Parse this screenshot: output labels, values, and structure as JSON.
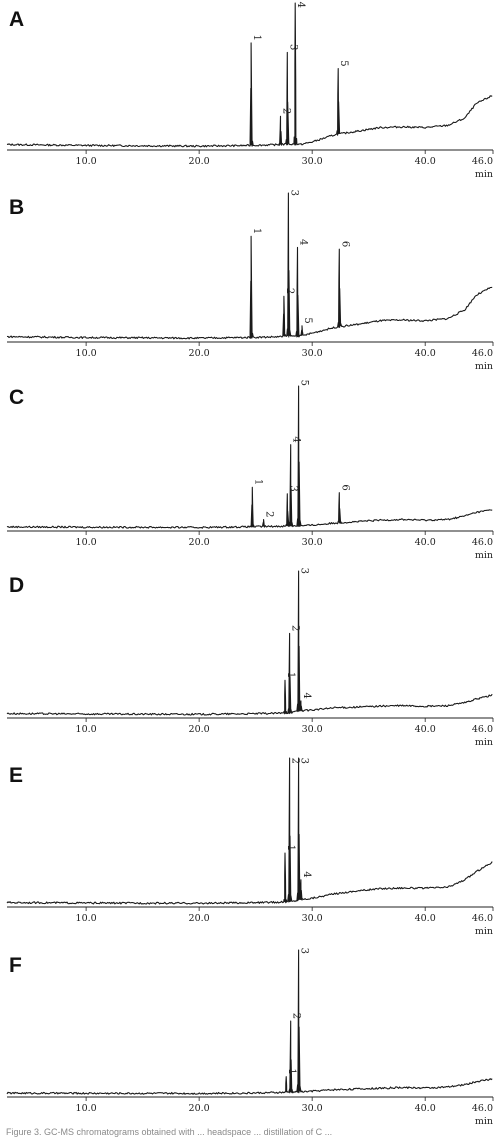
{
  "chart_data": [
    {
      "type": "line",
      "panel": "A",
      "title": "",
      "xlabel": "min",
      "ylabel": "",
      "xlim": [
        3.0,
        46.0
      ],
      "xticks": [
        "10.0",
        "20.0",
        "30.0",
        "40.0",
        "46.0"
      ],
      "baseline": [
        [
          3.0,
          0.017
        ],
        [
          10.0,
          0.011
        ],
        [
          20.0,
          0.006
        ],
        [
          24.0,
          0.01
        ],
        [
          27.0,
          0.016
        ],
        [
          28.0,
          0.02
        ],
        [
          29.0,
          0.018
        ],
        [
          30.0,
          0.035
        ],
        [
          32.0,
          0.085
        ],
        [
          34.0,
          0.11
        ],
        [
          36.0,
          0.135
        ],
        [
          38.0,
          0.14
        ],
        [
          40.0,
          0.135
        ],
        [
          42.0,
          0.15
        ],
        [
          43.5,
          0.2
        ],
        [
          44.5,
          0.3
        ],
        [
          46.0,
          0.36
        ]
      ],
      "peaks": [
        {
          "label": "1",
          "rt": 24.6,
          "height": 0.72
        },
        {
          "label": "2",
          "rt": 27.2,
          "height": 0.2
        },
        {
          "label": "3",
          "rt": 27.8,
          "height": 0.65
        },
        {
          "label": "4",
          "rt": 28.5,
          "height": 1.0
        },
        {
          "label": "5",
          "rt": 32.3,
          "height": 0.5
        }
      ]
    },
    {
      "type": "line",
      "panel": "B",
      "title": "",
      "xlabel": "min",
      "ylabel": "",
      "xlim": [
        3.0,
        46.0
      ],
      "xticks": [
        "10.0",
        "20.0",
        "30.0",
        "40.0",
        "46.0"
      ],
      "baseline": [
        [
          3.0,
          0.016
        ],
        [
          10.0,
          0.01
        ],
        [
          20.0,
          0.006
        ],
        [
          24.0,
          0.01
        ],
        [
          27.0,
          0.015
        ],
        [
          28.0,
          0.02
        ],
        [
          29.0,
          0.02
        ],
        [
          30.0,
          0.04
        ],
        [
          32.0,
          0.08
        ],
        [
          34.0,
          0.1
        ],
        [
          36.0,
          0.125
        ],
        [
          38.0,
          0.13
        ],
        [
          40.0,
          0.125
        ],
        [
          42.0,
          0.14
        ],
        [
          43.5,
          0.2
        ],
        [
          44.5,
          0.3
        ],
        [
          46.0,
          0.36
        ]
      ],
      "peaks": [
        {
          "label": "1",
          "rt": 24.6,
          "height": 0.7
        },
        {
          "label": "2",
          "rt": 27.5,
          "height": 0.28
        },
        {
          "label": "3",
          "rt": 27.9,
          "height": 1.0
        },
        {
          "label": "4",
          "rt": 28.7,
          "height": 0.62
        },
        {
          "label": "5",
          "rt": 29.1,
          "height": 0.07
        },
        {
          "label": "6",
          "rt": 32.4,
          "height": 0.58
        }
      ]
    },
    {
      "type": "line",
      "panel": "C",
      "title": "",
      "xlabel": "min",
      "ylabel": "",
      "xlim": [
        3.0,
        46.0
      ],
      "xticks": [
        "10.0",
        "20.0",
        "30.0",
        "40.0",
        "46.0"
      ],
      "baseline": [
        [
          3.0,
          0.008
        ],
        [
          10.0,
          0.006
        ],
        [
          20.0,
          0.004
        ],
        [
          24.0,
          0.008
        ],
        [
          27.0,
          0.012
        ],
        [
          28.0,
          0.015
        ],
        [
          29.0,
          0.015
        ],
        [
          30.0,
          0.02
        ],
        [
          32.0,
          0.035
        ],
        [
          34.0,
          0.045
        ],
        [
          36.0,
          0.055
        ],
        [
          38.0,
          0.06
        ],
        [
          40.0,
          0.055
        ],
        [
          42.0,
          0.06
        ],
        [
          43.5,
          0.085
        ],
        [
          44.5,
          0.11
        ],
        [
          46.0,
          0.13
        ]
      ],
      "peaks": [
        {
          "label": "1",
          "rt": 24.7,
          "height": 0.28
        },
        {
          "label": "2",
          "rt": 25.7,
          "height": 0.05
        },
        {
          "label": "3",
          "rt": 27.8,
          "height": 0.23
        },
        {
          "label": "4",
          "rt": 28.1,
          "height": 0.58
        },
        {
          "label": "5",
          "rt": 28.8,
          "height": 1.0
        },
        {
          "label": "6",
          "rt": 32.4,
          "height": 0.22
        }
      ]
    },
    {
      "type": "line",
      "panel": "D",
      "title": "",
      "xlabel": "min",
      "ylabel": "",
      "xlim": [
        3.0,
        46.0
      ],
      "xticks": [
        "10.0",
        "20.0",
        "30.0",
        "40.0",
        "46.0"
      ],
      "baseline": [
        [
          3.0,
          0.01
        ],
        [
          10.0,
          0.007
        ],
        [
          20.0,
          0.005
        ],
        [
          24.0,
          0.008
        ],
        [
          27.0,
          0.012
        ],
        [
          28.0,
          0.015
        ],
        [
          29.0,
          0.03
        ],
        [
          30.0,
          0.035
        ],
        [
          32.0,
          0.05
        ],
        [
          34.0,
          0.055
        ],
        [
          36.0,
          0.062
        ],
        [
          38.0,
          0.065
        ],
        [
          40.0,
          0.06
        ],
        [
          42.0,
          0.065
        ],
        [
          43.5,
          0.085
        ],
        [
          44.5,
          0.11
        ],
        [
          46.0,
          0.14
        ]
      ],
      "peaks": [
        {
          "label": "1",
          "rt": 27.6,
          "height": 0.23
        },
        {
          "label": "2",
          "rt": 28.0,
          "height": 0.56
        },
        {
          "label": "3",
          "rt": 28.8,
          "height": 1.0
        },
        {
          "label": "4",
          "rt": 29.0,
          "height": 0.07
        }
      ]
    },
    {
      "type": "line",
      "panel": "E",
      "title": "",
      "xlabel": "min",
      "ylabel": "",
      "xlim": [
        3.0,
        46.0
      ],
      "xticks": [
        "10.0",
        "20.0",
        "30.0",
        "40.0",
        "46.0"
      ],
      "baseline": [
        [
          3.0,
          0.01
        ],
        [
          10.0,
          0.007
        ],
        [
          20.0,
          0.005
        ],
        [
          24.0,
          0.008
        ],
        [
          27.0,
          0.012
        ],
        [
          28.0,
          0.015
        ],
        [
          29.0,
          0.03
        ],
        [
          30.0,
          0.04
        ],
        [
          32.0,
          0.07
        ],
        [
          34.0,
          0.09
        ],
        [
          36.0,
          0.105
        ],
        [
          38.0,
          0.11
        ],
        [
          40.0,
          0.108
        ],
        [
          42.0,
          0.115
        ],
        [
          43.5,
          0.165
        ],
        [
          44.5,
          0.22
        ],
        [
          46.0,
          0.29
        ]
      ],
      "peaks": [
        {
          "label": "1",
          "rt": 27.6,
          "height": 0.34
        },
        {
          "label": "2",
          "rt": 28.0,
          "height": 1.0
        },
        {
          "label": "3",
          "rt": 28.8,
          "height": 1.0
        },
        {
          "label": "4",
          "rt": 29.0,
          "height": 0.14
        }
      ]
    },
    {
      "type": "line",
      "panel": "F",
      "title": "",
      "xlabel": "min",
      "ylabel": "",
      "xlim": [
        3.0,
        46.0
      ],
      "xticks": [
        "10.0",
        "20.0",
        "30.0",
        "40.0",
        "46.0"
      ],
      "baseline": [
        [
          3.0,
          0.006
        ],
        [
          10.0,
          0.005
        ],
        [
          20.0,
          0.004
        ],
        [
          24.0,
          0.006
        ],
        [
          27.0,
          0.01
        ],
        [
          28.0,
          0.012
        ],
        [
          29.0,
          0.015
        ],
        [
          30.0,
          0.02
        ],
        [
          32.0,
          0.03
        ],
        [
          34.0,
          0.035
        ],
        [
          36.0,
          0.04
        ],
        [
          38.0,
          0.045
        ],
        [
          40.0,
          0.042
        ],
        [
          42.0,
          0.048
        ],
        [
          43.5,
          0.065
        ],
        [
          44.5,
          0.085
        ],
        [
          46.0,
          0.105
        ]
      ],
      "peaks": [
        {
          "label": "1",
          "rt": 27.7,
          "height": 0.11
        },
        {
          "label": "2",
          "rt": 28.1,
          "height": 0.5
        },
        {
          "label": "3",
          "rt": 28.8,
          "height": 1.0
        }
      ]
    }
  ],
  "caption": "Figure 3. GC-MS chromatograms obtained with ... headspace ... distillation of C ..."
}
